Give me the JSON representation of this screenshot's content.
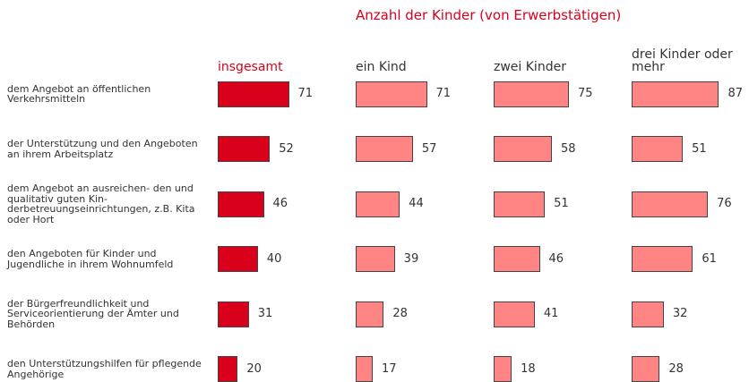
{
  "chart_data": {
    "type": "bar",
    "orientation": "horizontal",
    "title": "Anzahl der Kinder (von Erwerbstätigen)",
    "categories": [
      "dem Angebot an öffentlichen Verkehrsmitteln",
      "der Unterstützung und den Angeboten an ihrem Arbeitsplatz",
      "dem Angebot an ausreichen- den und qualitativ guten Kin- derbetreuungseinrichtungen, z.B. Kita oder Hort",
      "den Angeboten für Kinder und Jugendliche in ihrem Wohnumfeld",
      "der Bürgerfreundlichkeit und Serviceorientierung der Ämter und Behörden",
      "den Unterstützungshilfen für pflegende Angehörige"
    ],
    "series": [
      {
        "name": "insgesamt",
        "color": "#d9001b",
        "values": [
          71,
          52,
          46,
          40,
          31,
          20
        ]
      },
      {
        "name": "ein Kind",
        "color": "#ff8585",
        "values": [
          71,
          57,
          44,
          39,
          28,
          17
        ]
      },
      {
        "name": "zwei Kinder",
        "color": "#ff8585",
        "values": [
          75,
          58,
          51,
          46,
          41,
          18
        ]
      },
      {
        "name": "drei Kinder oder mehr",
        "color": "#ff8585",
        "values": [
          87,
          51,
          76,
          61,
          32,
          28
        ]
      }
    ]
  }
}
